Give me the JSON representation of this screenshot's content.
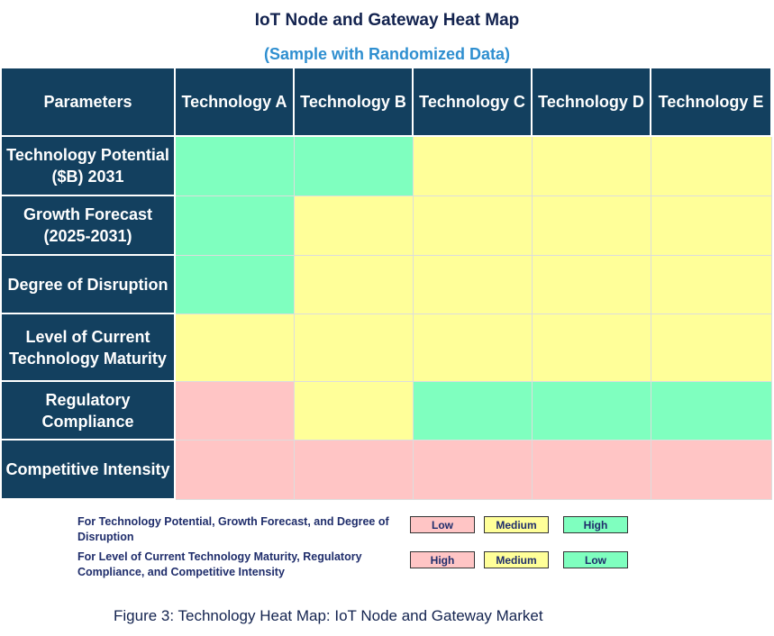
{
  "title": "IoT Node and Gateway Heat Map",
  "subtitle": "(Sample with Randomized Data)",
  "table": {
    "header": [
      "Parameters",
      "Technology A",
      "Technology B",
      "Technology C",
      "Technology D",
      "Technology E"
    ],
    "rows": [
      {
        "label": "Technology Potential ($B) 2031",
        "colors": [
          "#7fffbf",
          "#7fffbf",
          "#ffff99",
          "#ffff99",
          "#ffff99"
        ]
      },
      {
        "label": "Growth Forecast (2025-2031)",
        "colors": [
          "#7fffbf",
          "#ffff99",
          "#ffff99",
          "#ffff99",
          "#ffff99"
        ]
      },
      {
        "label": "Degree of Disruption",
        "colors": [
          "#7fffbf",
          "#ffff99",
          "#ffff99",
          "#ffff99",
          "#ffff99"
        ]
      },
      {
        "label": "Level of Current Technology Maturity",
        "colors": [
          "#ffff99",
          "#ffff99",
          "#ffff99",
          "#ffff99",
          "#ffff99"
        ]
      },
      {
        "label": "Regulatory Compliance",
        "colors": [
          "#ffc5c5",
          "#ffff99",
          "#7fffbf",
          "#7fffbf",
          "#7fffbf"
        ]
      },
      {
        "label": "Competitive Intensity",
        "colors": [
          "#ffc5c5",
          "#ffc5c5",
          "#ffc5c5",
          "#ffc5c5",
          "#ffc5c5"
        ]
      }
    ]
  },
  "legend": [
    {
      "text": "For Technology Potential, Growth Forecast, and Degree of Disruption",
      "items": [
        {
          "label": "Low",
          "color": "#ffc5c5"
        },
        {
          "label": "Medium",
          "color": "#ffff99"
        },
        {
          "label": "High",
          "color": "#7fffbf"
        }
      ]
    },
    {
      "text": "For Level of Current Technology Maturity, Regulatory Compliance, and Competitive Intensity",
      "items": [
        {
          "label": "High",
          "color": "#ffc5c5"
        },
        {
          "label": "Medium",
          "color": "#ffff99"
        },
        {
          "label": "Low",
          "color": "#7fffbf"
        }
      ]
    }
  ],
  "caption": "Figure 3: Technology Heat Map: IoT Node and Gateway Market"
}
